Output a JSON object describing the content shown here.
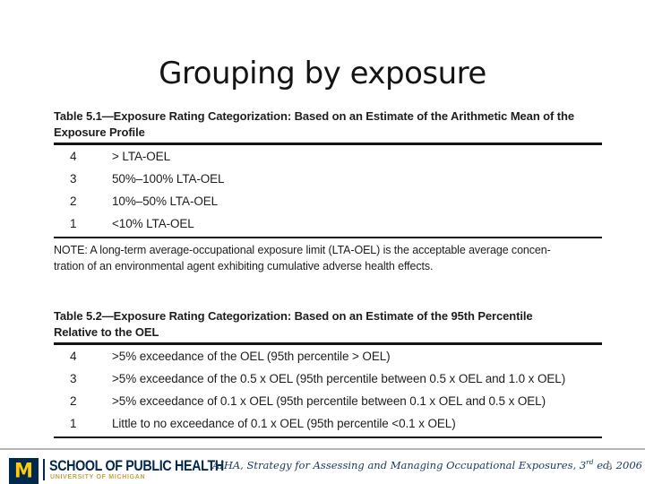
{
  "slide": {
    "title": "Grouping by exposure",
    "page_number": "9"
  },
  "colors": {
    "navy": "#00274C",
    "maize": "#FFCB05"
  },
  "tables": [
    {
      "caption_line1": "Table 5.1—Exposure Rating Categorization: Based on an Estimate of the Arithmetic Mean of the",
      "caption_line2": "Exposure Profile",
      "rows": [
        {
          "rating": "4",
          "description": "> LTA-OEL"
        },
        {
          "rating": "3",
          "description": "50%–100% LTA-OEL"
        },
        {
          "rating": "2",
          "description": "10%–50% LTA-OEL"
        },
        {
          "rating": "1",
          "description": "<10% LTA-OEL"
        }
      ],
      "note_line1": "NOTE: A long-term average-occupational exposure limit (LTA-OEL) is the acceptable average concen-",
      "note_line2": "tration of an environmental agent exhibiting cumulative adverse health effects."
    },
    {
      "caption_line1": "Table 5.2—Exposure Rating Categorization: Based on an Estimate of the 95th Percentile",
      "caption_line2": "Relative to the OEL",
      "rows": [
        {
          "rating": "4",
          "description": ">5% exceedance of the OEL (95th percentile > OEL)"
        },
        {
          "rating": "3",
          "description": ">5% exceedance of the 0.5 x OEL (95th percentile between 0.5 x OEL and 1.0 x OEL)"
        },
        {
          "rating": "2",
          "description": ">5% exceedance of 0.1 x OEL (95th percentile between 0.1 x OEL and 0.5 x OEL)"
        },
        {
          "rating": "1",
          "description": "Little to no exceedance of 0.1 x OEL (95th percentile <0.1 x OEL)"
        }
      ]
    }
  ],
  "footer": {
    "logo_letter": "M",
    "school_name": "SCHOOL OF PUBLIC HEALTH",
    "university_name": "UNIVERSITY OF MICHIGAN",
    "citation_prefix": "AIHA, ",
    "citation_title": "Strategy for Assessing and Managing Occupational Exposures",
    "citation_mid": ", 3",
    "citation_sup": "rd",
    "citation_end": " ed, 2006"
  }
}
